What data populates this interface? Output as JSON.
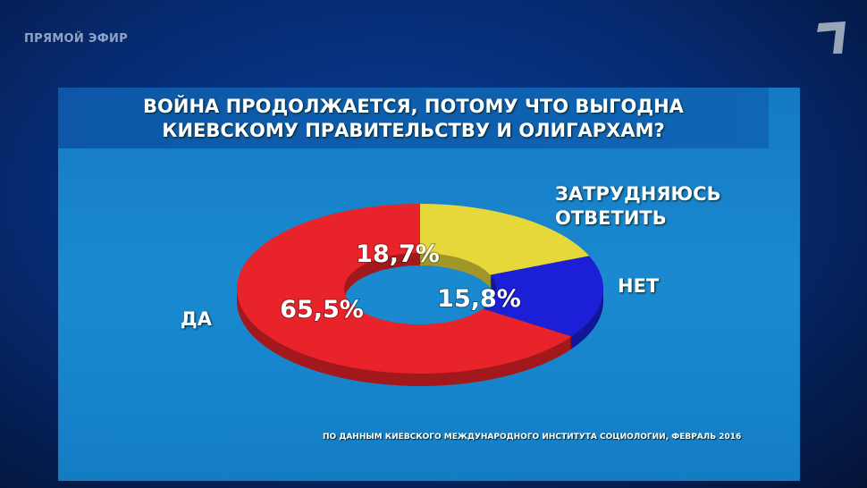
{
  "broadcast": {
    "live_label": "ПРЯМОЙ ЭФИР",
    "channel_logo": "1"
  },
  "chart_data": {
    "type": "pie",
    "donut": true,
    "title": "ВОЙНА ПРОДОЛЖАЕТСЯ, ПОТОМУ ЧТО ВЫГОДНА КИЕВСКОМУ ПРАВИТЕЛЬСТВУ И ОЛИГАРХАМ?",
    "title_lines": [
      "ВОЙНА ПРОДОЛЖАЕТСЯ, ПОТОМУ ЧТО ВЫГОДНА",
      "КИЕВСКОМУ ПРАВИТЕЛЬСТВУ И ОЛИГАРХАМ?"
    ],
    "slices": [
      {
        "label": "ЗАТРУДНЯЮСЬ ОТВЕТИТЬ",
        "label_lines": [
          "ЗАТРУДНЯЮСЬ",
          "ОТВЕТИТЬ"
        ],
        "value": 18.7,
        "value_label": "18,7%",
        "color": "#e6d83a"
      },
      {
        "label": "НЕТ",
        "label_lines": [
          "НЕТ"
        ],
        "value": 15.8,
        "value_label": "15,8%",
        "color": "#1b1fd6"
      },
      {
        "label": "ДА",
        "label_lines": [
          "ДА"
        ],
        "value": 65.5,
        "value_label": "65,5%",
        "color": "#e8232a"
      }
    ],
    "source": "ПО ДАННЫМ КИЕВСКОГО МЕЖДУНАРОДНОГО ИНСТИТУТА СОЦИОЛОГИИ, ФЕВРАЛЬ 2016"
  }
}
